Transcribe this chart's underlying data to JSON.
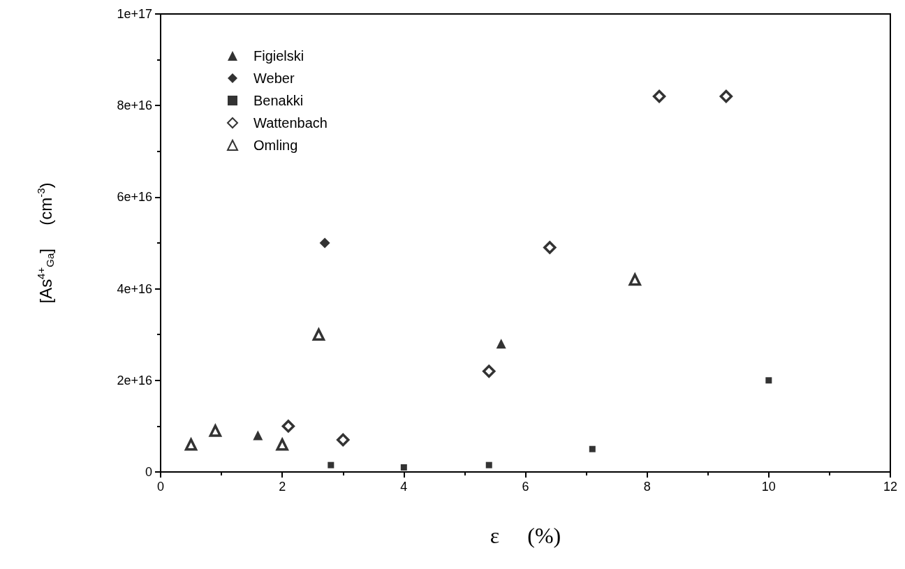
{
  "chart_data": {
    "type": "scatter",
    "xlabel": "ε     (%)",
    "ylabel": "[As$^{4+}$$_{Ga}$]     (cm$^{-3}$)",
    "xlim": [
      0,
      12
    ],
    "xticks": [
      0,
      {
        "value": 1,
        "label": null
      },
      2,
      {
        "value": 3,
        "label": null
      },
      4,
      {
        "value": 5,
        "label": null
      },
      6,
      {
        "value": 7,
        "label": null
      },
      8,
      {
        "value": 9,
        "label": null
      },
      10,
      {
        "value": 11,
        "label": null
      },
      12
    ],
    "ylim": [
      0,
      1e+17
    ],
    "yticks": [
      0,
      {
        "value": 1e+16,
        "label": null
      },
      {
        "value": 2e+16,
        "label": "2e+16"
      },
      {
        "value": 3e+16,
        "label": null
      },
      {
        "value": 4e+16,
        "label": "4e+16"
      },
      {
        "value": 5e+16,
        "label": null
      },
      {
        "value": 6e+16,
        "label": "6e+16"
      },
      {
        "value": 7e+16,
        "label": null
      },
      {
        "value": 8e+16,
        "label": "8e+16"
      },
      {
        "value": 9e+16,
        "label": null
      },
      {
        "value": 1e+17,
        "label": "1e+17"
      }
    ],
    "grid": false,
    "legend": "top left",
    "series": [
      {
        "name": "Figielski",
        "color": "#000000",
        "marker": "triangle",
        "x": [
          1.6,
          5.6
        ],
        "values": [
          8000000000000000.0,
          2.8e+16
        ]
      },
      {
        "name": "Weber",
        "color": "#000000",
        "marker": "diamond",
        "x": [
          2.7
        ],
        "values": [
          5e+16
        ]
      },
      {
        "name": "Benakki",
        "color": "#000000",
        "marker": "square",
        "x": [
          2.8,
          4.0,
          5.4,
          7.1,
          10.0
        ],
        "values": [
          1500000000000000.0,
          1000000000000000.0,
          1500000000000000.0,
          5000000000000000.0,
          2e+16
        ]
      },
      {
        "name": "Wattenbach",
        "color": "#000000",
        "marker": "diamond",
        "x": [
          2.1,
          3.0,
          5.4,
          6.4,
          8.2,
          9.3
        ],
        "values": [
          1e+16,
          7000000000000000.0,
          2.2e+16,
          4.9e+16,
          8.2e+16,
          8.2e+16
        ]
      },
      {
        "name": "Omling",
        "color": "#000000",
        "marker": "triangle",
        "x": [
          0.5,
          0.9,
          2.0,
          2.6,
          7.8
        ],
        "values": [
          6000000000000000.0,
          9000000000000000.0,
          6000000000000000.0,
          3e+16,
          4.2e+16
        ]
      }
    ]
  }
}
